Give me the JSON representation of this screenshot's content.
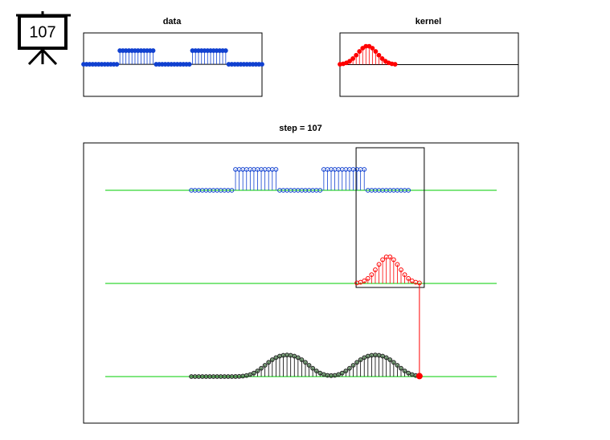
{
  "badge": "107",
  "chart_data": [
    {
      "type": "stem",
      "title": "data",
      "color": "#1040d0",
      "values": [
        0,
        0,
        0,
        0,
        0,
        0,
        0,
        0,
        0,
        0,
        0,
        0,
        1,
        1,
        1,
        1,
        1,
        1,
        1,
        1,
        1,
        1,
        1,
        1,
        0,
        0,
        0,
        0,
        0,
        0,
        0,
        0,
        0,
        0,
        0,
        0,
        1,
        1,
        1,
        1,
        1,
        1,
        1,
        1,
        1,
        1,
        1,
        1,
        0,
        0,
        0,
        0,
        0,
        0,
        0,
        0,
        0,
        0,
        0,
        0
      ],
      "xlim": [
        0,
        59
      ],
      "ylim": [
        -2.35,
        2.3
      ]
    },
    {
      "type": "stem",
      "title": "kernel",
      "color": "#ff0000",
      "values": [
        0.018,
        0.044,
        0.096,
        0.186,
        0.325,
        0.506,
        0.707,
        0.882,
        0.986,
        0.986,
        0.882,
        0.707,
        0.506,
        0.325,
        0.186,
        0.096,
        0.044,
        0.018
      ],
      "xlim": [
        0,
        55
      ],
      "ylim": [
        -1.7,
        1.7
      ]
    },
    {
      "type": "convolution",
      "title": "step = 107",
      "color": "#000000",
      "values": [
        0,
        0,
        0,
        0,
        0,
        0,
        0,
        0,
        0,
        0,
        0,
        0,
        0.002,
        0.008,
        0.021,
        0.046,
        0.089,
        0.157,
        0.251,
        0.369,
        0.5,
        0.632,
        0.749,
        0.844,
        0.909,
        0.946,
        0.958,
        0.946,
        0.909,
        0.843,
        0.749,
        0.631,
        0.5,
        0.368,
        0.251,
        0.156,
        0.091,
        0.054,
        0.042,
        0.054,
        0.091,
        0.157,
        0.251,
        0.369,
        0.5,
        0.632,
        0.749,
        0.844,
        0.909,
        0.946,
        0.958,
        0.946,
        0.909,
        0.843,
        0.749,
        0.631,
        0.5,
        0.368,
        0.251,
        0.156,
        0.089,
        0.046,
        0.021
      ],
      "xlim": [
        -29.3,
        88.9
      ]
    }
  ]
}
